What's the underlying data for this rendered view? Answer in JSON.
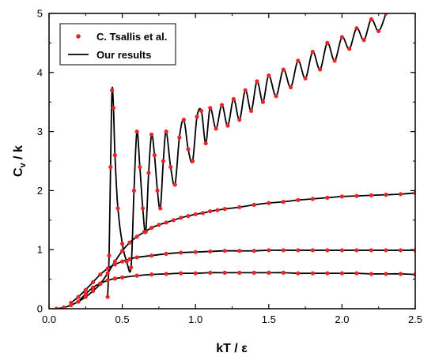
{
  "chart_data": {
    "type": "scatter",
    "xlabel": "kT / ε",
    "ylabel_main": "C",
    "ylabel_sub": "v",
    "ylabel_rest": " / k",
    "xlim": [
      0,
      2.5
    ],
    "ylim": [
      0,
      5
    ],
    "xticks": [
      "0.0",
      "0.5",
      "1.0",
      "1.5",
      "2.0",
      "2.5"
    ],
    "yticks": [
      "0",
      "1",
      "2",
      "3",
      "4",
      "5"
    ],
    "legend_position": "top-left",
    "colors": {
      "points": "#e8262a",
      "line": "#000000"
    },
    "series": [
      {
        "name": "C. Tsallis et al.",
        "style": "points",
        "curves": [
          {
            "x": [
              0.4,
              0.41,
              0.42,
              0.43,
              0.44,
              0.45,
              0.47,
              0.5,
              0.53,
              0.56,
              0.58,
              0.6,
              0.62,
              0.64,
              0.66,
              0.68,
              0.7,
              0.72,
              0.74,
              0.76,
              0.78,
              0.8,
              0.83,
              0.86,
              0.89,
              0.92,
              0.95,
              0.98,
              1.01,
              1.04,
              1.07,
              1.1,
              1.14,
              1.18,
              1.22,
              1.26,
              1.3,
              1.34,
              1.38,
              1.42,
              1.46,
              1.5,
              1.55,
              1.6,
              1.65,
              1.7,
              1.75,
              1.8,
              1.85,
              1.9,
              1.95,
              2.0,
              2.05,
              2.1,
              2.15,
              2.2,
              2.25,
              2.3
            ],
            "y": [
              0.2,
              0.9,
              2.4,
              3.7,
              3.4,
              2.6,
              1.7,
              1.1,
              0.8,
              0.7,
              2.0,
              3.0,
              2.4,
              1.7,
              1.3,
              2.3,
              2.95,
              2.6,
              2.0,
              1.7,
              2.5,
              3.0,
              2.4,
              2.1,
              2.9,
              3.2,
              2.7,
              2.5,
              3.25,
              3.35,
              2.8,
              3.4,
              3.05,
              3.45,
              3.1,
              3.55,
              3.2,
              3.7,
              3.35,
              3.85,
              3.5,
              3.95,
              3.6,
              4.05,
              3.75,
              4.2,
              3.9,
              4.35,
              4.05,
              4.5,
              4.2,
              4.6,
              4.4,
              4.75,
              4.55,
              4.9,
              4.7,
              5.0
            ]
          },
          {
            "x": [
              0.05,
              0.1,
              0.15,
              0.2,
              0.25,
              0.3,
              0.35,
              0.4,
              0.45,
              0.5,
              0.55,
              0.6,
              0.65,
              0.7,
              0.75,
              0.8,
              0.85,
              0.9,
              0.95,
              1.0,
              1.05,
              1.1,
              1.15,
              1.2,
              1.3,
              1.4,
              1.5,
              1.6,
              1.7,
              1.8,
              1.9,
              2.0,
              2.1,
              2.2,
              2.3,
              2.4,
              2.5
            ],
            "y": [
              0.0,
              0.02,
              0.06,
              0.12,
              0.2,
              0.3,
              0.42,
              0.6,
              0.8,
              0.98,
              1.12,
              1.22,
              1.3,
              1.37,
              1.42,
              1.46,
              1.5,
              1.54,
              1.57,
              1.6,
              1.62,
              1.65,
              1.67,
              1.69,
              1.72,
              1.76,
              1.79,
              1.81,
              1.84,
              1.86,
              1.88,
              1.9,
              1.91,
              1.92,
              1.93,
              1.94,
              1.96
            ]
          },
          {
            "x": [
              0.15,
              0.2,
              0.25,
              0.3,
              0.35,
              0.4,
              0.45,
              0.5,
              0.55,
              0.6,
              0.7,
              0.8,
              0.9,
              1.0,
              1.1,
              1.2,
              1.3,
              1.4,
              1.5,
              1.6,
              1.7,
              1.8,
              1.9,
              2.0,
              2.1,
              2.2,
              2.3,
              2.4,
              2.5
            ],
            "y": [
              0.1,
              0.2,
              0.32,
              0.45,
              0.58,
              0.68,
              0.75,
              0.8,
              0.84,
              0.87,
              0.9,
              0.93,
              0.95,
              0.96,
              0.97,
              0.98,
              0.98,
              0.98,
              0.99,
              0.99,
              0.99,
              0.99,
              0.99,
              0.99,
              0.99,
              0.99,
              0.99,
              0.99,
              0.99
            ]
          },
          {
            "x": [
              0.2,
              0.25,
              0.3,
              0.35,
              0.4,
              0.45,
              0.5,
              0.6,
              0.7,
              0.8,
              0.9,
              1.0,
              1.1,
              1.2,
              1.3,
              1.4,
              1.5,
              1.6,
              1.7,
              1.8,
              1.9,
              2.0,
              2.1,
              2.2,
              2.3,
              2.4,
              2.5
            ],
            "y": [
              0.12,
              0.25,
              0.36,
              0.43,
              0.48,
              0.51,
              0.53,
              0.56,
              0.58,
              0.59,
              0.6,
              0.6,
              0.61,
              0.61,
              0.61,
              0.61,
              0.61,
              0.61,
              0.6,
              0.6,
              0.6,
              0.6,
              0.6,
              0.59,
              0.59,
              0.59,
              0.58
            ]
          }
        ]
      },
      {
        "name": "Our results",
        "style": "line",
        "curves": [
          {
            "x": [
              0.4,
              0.41,
              0.42,
              0.43,
              0.44,
              0.45,
              0.47,
              0.5,
              0.53,
              0.56,
              0.58,
              0.6,
              0.62,
              0.64,
              0.66,
              0.68,
              0.7,
              0.72,
              0.74,
              0.76,
              0.78,
              0.8,
              0.83,
              0.86,
              0.89,
              0.92,
              0.95,
              0.98,
              1.01,
              1.04,
              1.07,
              1.1,
              1.14,
              1.18,
              1.22,
              1.26,
              1.3,
              1.34,
              1.38,
              1.42,
              1.46,
              1.5,
              1.55,
              1.6,
              1.65,
              1.7,
              1.75,
              1.8,
              1.85,
              1.9,
              1.95,
              2.0,
              2.05,
              2.1,
              2.15,
              2.2,
              2.25,
              2.3
            ],
            "y": [
              0.2,
              0.9,
              2.4,
              3.7,
              3.4,
              2.6,
              1.7,
              1.1,
              0.8,
              0.7,
              2.0,
              3.0,
              2.4,
              1.7,
              1.3,
              2.3,
              2.95,
              2.6,
              2.0,
              1.7,
              2.5,
              3.0,
              2.4,
              2.1,
              2.9,
              3.2,
              2.7,
              2.5,
              3.25,
              3.35,
              2.8,
              3.4,
              3.05,
              3.45,
              3.1,
              3.55,
              3.2,
              3.7,
              3.35,
              3.85,
              3.5,
              3.95,
              3.6,
              4.05,
              3.75,
              4.2,
              3.9,
              4.35,
              4.05,
              4.5,
              4.2,
              4.6,
              4.4,
              4.75,
              4.55,
              4.9,
              4.7,
              5.0
            ]
          },
          {
            "x": [
              0.05,
              0.1,
              0.15,
              0.2,
              0.25,
              0.3,
              0.35,
              0.4,
              0.45,
              0.5,
              0.55,
              0.6,
              0.65,
              0.7,
              0.75,
              0.8,
              0.85,
              0.9,
              0.95,
              1.0,
              1.05,
              1.1,
              1.15,
              1.2,
              1.3,
              1.4,
              1.5,
              1.6,
              1.7,
              1.8,
              1.9,
              2.0,
              2.1,
              2.2,
              2.3,
              2.4,
              2.5
            ],
            "y": [
              0.0,
              0.02,
              0.06,
              0.12,
              0.2,
              0.3,
              0.42,
              0.6,
              0.8,
              0.98,
              1.12,
              1.22,
              1.3,
              1.37,
              1.42,
              1.46,
              1.5,
              1.54,
              1.57,
              1.6,
              1.62,
              1.65,
              1.67,
              1.69,
              1.72,
              1.76,
              1.79,
              1.81,
              1.84,
              1.86,
              1.88,
              1.9,
              1.91,
              1.92,
              1.93,
              1.94,
              1.96
            ]
          },
          {
            "x": [
              0.15,
              0.2,
              0.25,
              0.3,
              0.35,
              0.4,
              0.45,
              0.5,
              0.55,
              0.6,
              0.7,
              0.8,
              0.9,
              1.0,
              1.1,
              1.2,
              1.3,
              1.4,
              1.5,
              1.6,
              1.7,
              1.8,
              1.9,
              2.0,
              2.1,
              2.2,
              2.3,
              2.4,
              2.5
            ],
            "y": [
              0.1,
              0.2,
              0.32,
              0.45,
              0.58,
              0.68,
              0.75,
              0.8,
              0.84,
              0.87,
              0.9,
              0.93,
              0.95,
              0.96,
              0.97,
              0.98,
              0.98,
              0.98,
              0.99,
              0.99,
              0.99,
              0.99,
              0.99,
              0.99,
              0.99,
              0.99,
              0.99,
              0.99,
              0.99
            ]
          },
          {
            "x": [
              0.2,
              0.25,
              0.3,
              0.35,
              0.4,
              0.45,
              0.5,
              0.6,
              0.7,
              0.8,
              0.9,
              1.0,
              1.1,
              1.2,
              1.3,
              1.4,
              1.5,
              1.6,
              1.7,
              1.8,
              1.9,
              2.0,
              2.1,
              2.2,
              2.3,
              2.4,
              2.5
            ],
            "y": [
              0.12,
              0.25,
              0.36,
              0.43,
              0.48,
              0.51,
              0.53,
              0.56,
              0.58,
              0.59,
              0.6,
              0.6,
              0.61,
              0.61,
              0.61,
              0.61,
              0.61,
              0.61,
              0.6,
              0.6,
              0.6,
              0.6,
              0.6,
              0.59,
              0.59,
              0.59,
              0.58
            ]
          }
        ]
      }
    ]
  }
}
